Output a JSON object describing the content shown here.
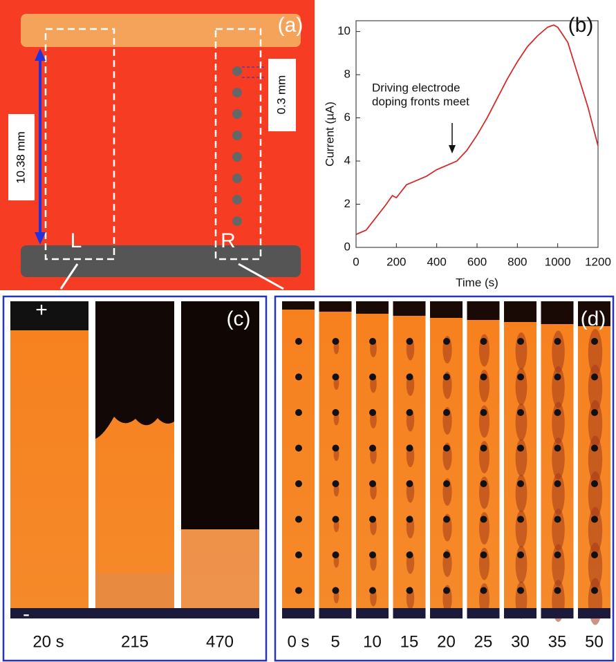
{
  "panels": {
    "a": {
      "label": "(a)",
      "left": "L",
      "right": "R",
      "length": "10.38 mm",
      "spacing": "0.3 mm"
    },
    "c": {
      "label": "(c)",
      "plus": "+",
      "minus": "-",
      "times": [
        "20 s",
        "215",
        "470"
      ]
    },
    "d": {
      "label": "(d)",
      "times": [
        "0 s",
        "5",
        "10",
        "15",
        "20",
        "25",
        "30",
        "35",
        "50"
      ]
    }
  },
  "chart_data": {
    "type": "line",
    "panel_label": "(b)",
    "x_label": "Time (s)",
    "y_label": "Current (µA)",
    "annotation": [
      "Driving electrode",
      "doping fronts meet"
    ],
    "x": [
      0,
      50,
      100,
      150,
      180,
      200,
      250,
      300,
      350,
      400,
      450,
      500,
      550,
      600,
      650,
      700,
      750,
      800,
      850,
      900,
      950,
      980,
      1000,
      1050,
      1100,
      1150,
      1200
    ],
    "values": [
      0.6,
      0.8,
      1.4,
      2.0,
      2.4,
      2.3,
      2.9,
      3.1,
      3.3,
      3.6,
      3.8,
      4.0,
      4.5,
      5.2,
      6.0,
      6.9,
      7.8,
      8.6,
      9.3,
      9.8,
      10.2,
      10.3,
      10.2,
      9.5,
      8.0,
      6.5,
      4.7
    ],
    "color": "#d42a2a",
    "xlim": [
      0,
      1200
    ],
    "xticks": [
      0,
      200,
      400,
      600,
      800,
      1000,
      1200
    ],
    "ylim": [
      0,
      10.5
    ],
    "yticks": [
      0,
      2,
      4,
      6,
      8,
      10
    ]
  }
}
